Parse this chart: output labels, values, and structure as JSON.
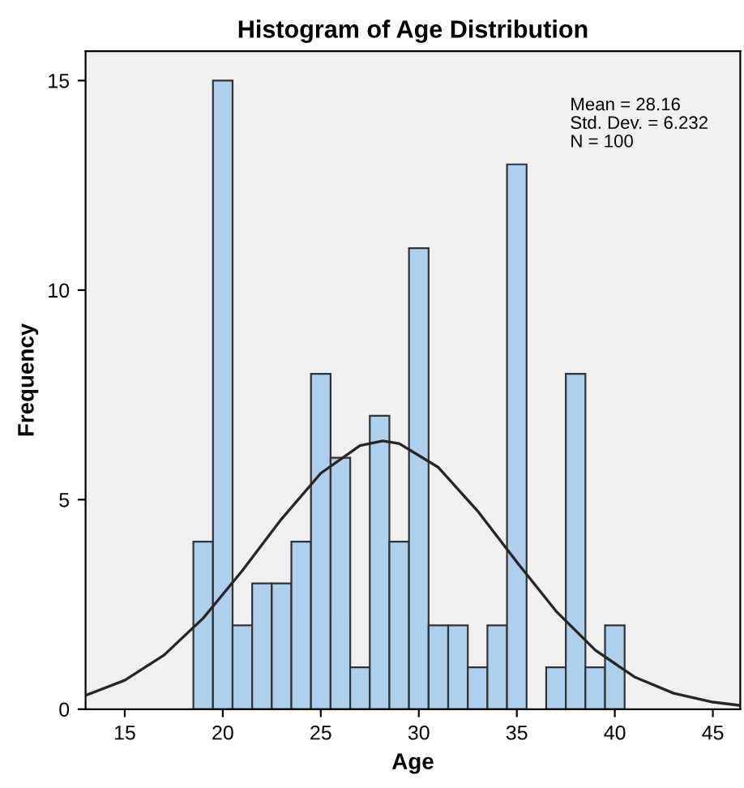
{
  "chart_data": {
    "type": "histogram",
    "title": "Histogram of Age Distribution",
    "xlabel": "Age",
    "ylabel": "Frequency",
    "series": [
      {
        "color": "#aed0ee",
        "bins": [
          18.5,
          19.5,
          20.5,
          21.5,
          22.5,
          23.5,
          24.5,
          25.5,
          26.5,
          27.5,
          28.5,
          29.5,
          30.5,
          31.5,
          32.5,
          33.5,
          34.5,
          35.5,
          36.5,
          37.5,
          38.5,
          39.5,
          40.5
        ],
        "values": [
          4,
          15,
          2,
          3,
          3,
          4,
          8,
          6,
          1,
          7,
          4,
          11,
          2,
          2,
          1,
          2,
          13,
          0,
          1,
          8,
          1,
          2
        ]
      },
      {
        "type": "line",
        "color": "#262626",
        "x": [
          13,
          15,
          17,
          19,
          21,
          23,
          25,
          27,
          28.16,
          29,
          31,
          33,
          35,
          37,
          39,
          41,
          43,
          45,
          46.4
        ],
        "values": [
          0.33,
          0.69,
          1.29,
          2.17,
          3.31,
          4.54,
          5.63,
          6.29,
          6.4,
          6.34,
          5.77,
          4.73,
          3.51,
          2.34,
          1.41,
          0.77,
          0.38,
          0.17,
          0.09
        ]
      }
    ],
    "annotations": [
      "Mean = 28.16",
      "Std. Dev. = 6.232",
      "N = 100"
    ],
    "xlim": [
      13,
      46.4
    ],
    "ylim": [
      0,
      15.7
    ],
    "xticks": [
      15,
      20,
      25,
      30,
      35,
      40,
      45
    ],
    "yticks": [
      0,
      5,
      10,
      15
    ],
    "grid": false,
    "legend": false
  }
}
